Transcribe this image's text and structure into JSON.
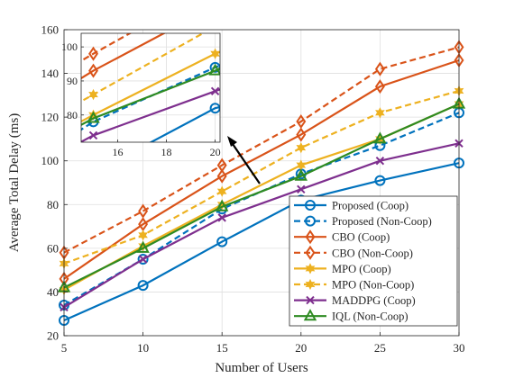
{
  "chart_data": {
    "type": "line",
    "title": "",
    "xlabel": "Number of Users",
    "ylabel": "Average Total Delay (ms)",
    "x": [
      5,
      10,
      15,
      20,
      25,
      30
    ],
    "xlim": [
      5,
      30
    ],
    "ylim": [
      20,
      160
    ],
    "xticks": [
      "5",
      "10",
      "15",
      "20",
      "25",
      "30"
    ],
    "yticks": [
      "20",
      "40",
      "60",
      "80",
      "100",
      "120",
      "140",
      "160"
    ],
    "grid": true,
    "legend_position": "bottom-right",
    "series": [
      {
        "name": "Proposed (Coop)",
        "color": "#0072BD",
        "dash": "solid",
        "marker": "circle",
        "values": [
          27,
          43,
          63,
          82,
          91,
          99
        ]
      },
      {
        "name": "Proposed (Non-Coop)",
        "color": "#0072BD",
        "dash": "dashed",
        "marker": "circle",
        "values": [
          34,
          55,
          78,
          94,
          107,
          122
        ]
      },
      {
        "name": "CBO (Coop)",
        "color": "#D95319",
        "dash": "solid",
        "marker": "diamond",
        "values": [
          46,
          71,
          93,
          112,
          134,
          146
        ]
      },
      {
        "name": "CBO (Non-Coop)",
        "color": "#D95319",
        "dash": "dashed",
        "marker": "diamond",
        "values": [
          58,
          77,
          98,
          118,
          142,
          152
        ]
      },
      {
        "name": "MPO (Coop)",
        "color": "#EDB120",
        "dash": "solid",
        "marker": "star",
        "values": [
          41,
          61,
          80,
          98,
          110,
          126
        ]
      },
      {
        "name": "MPO (Non-Coop)",
        "color": "#EDB120",
        "dash": "dashed",
        "marker": "star",
        "values": [
          53,
          66,
          86,
          106,
          122,
          132
        ]
      },
      {
        "name": "MADDPG (Coop)",
        "color": "#7E2F8E",
        "dash": "solid",
        "marker": "x",
        "values": [
          33,
          55,
          74,
          87,
          100,
          108
        ]
      },
      {
        "name": "IQL (Non-Coop)",
        "color": "#2E8B22",
        "dash": "solid",
        "marker": "triangle",
        "values": [
          42,
          60,
          79,
          93,
          110,
          126
        ]
      }
    ],
    "inset": {
      "xlim": [
        14.5,
        20.2
      ],
      "ylim": [
        72,
        104
      ],
      "xticks": [
        "16",
        "18",
        "20"
      ],
      "yticks": [
        "80",
        "90",
        "100"
      ]
    }
  }
}
